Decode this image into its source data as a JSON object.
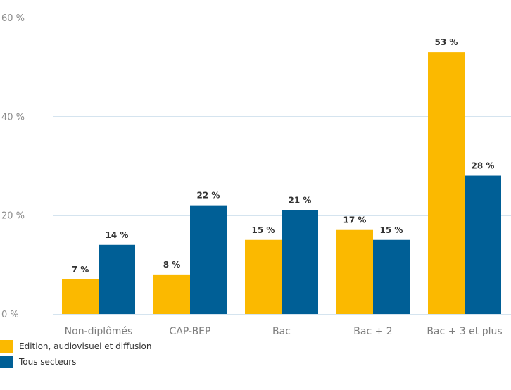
{
  "chart_data": {
    "type": "bar",
    "categories": [
      "Non-diplômés",
      "CAP-BEP",
      "Bac",
      "Bac + 2",
      "Bac + 3 et plus"
    ],
    "series": [
      {
        "name": "Edition, audiovisuel et diffusion",
        "color": "#fbb900",
        "values": [
          7,
          8,
          15,
          17,
          53
        ],
        "labels": [
          "7 %",
          "8 %",
          "15 %",
          "17 %",
          "53 %"
        ]
      },
      {
        "name": "Tous secteurs",
        "color": "#005f96",
        "values": [
          14,
          22,
          21,
          15,
          28
        ],
        "labels": [
          "14 %",
          "22 %",
          "21 %",
          "15 %",
          "28 %"
        ]
      }
    ],
    "y_ticks": [
      0,
      20,
      40,
      60
    ],
    "y_tick_labels": [
      "0 %",
      "20 %",
      "40 %",
      "60 %"
    ],
    "ylim": [
      0,
      60
    ],
    "grid": true,
    "gridline_color": "#d5e4ef",
    "title": "",
    "xlabel": "",
    "ylabel": "",
    "legend_position": "bottom-left"
  }
}
